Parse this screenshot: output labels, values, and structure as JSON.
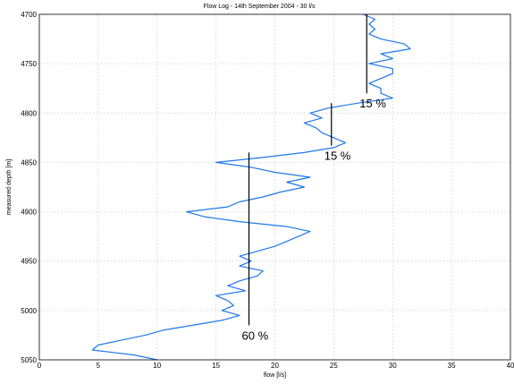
{
  "chart_data": {
    "type": "line",
    "title": "Flow Log - 14th September 2004 - 30 l/s",
    "xlabel": "flow [l/s]",
    "ylabel": "measured depth [m]",
    "xlim": [
      0,
      40
    ],
    "ylim": [
      4700,
      5050
    ],
    "y_inverted": true,
    "grid": true,
    "x_ticks": [
      "0",
      "5",
      "10",
      "15",
      "20",
      "25",
      "30",
      "35",
      "40"
    ],
    "y_ticks": [
      "4700",
      "4750",
      "4800",
      "4850",
      "4900",
      "4950",
      "5000",
      "5050"
    ],
    "series": [
      {
        "color": "#1f77e8",
        "depth": [
          4700,
          4705,
          4710,
          4715,
          4720,
          4725,
          4730,
          4735,
          4740,
          4745,
          4750,
          4755,
          4760,
          4765,
          4770,
          4775,
          4780,
          4785,
          4790,
          4795,
          4800,
          4805,
          4810,
          4815,
          4820,
          4825,
          4830,
          4835,
          4840,
          4845,
          4850,
          4855,
          4860,
          4865,
          4870,
          4875,
          4880,
          4885,
          4890,
          4895,
          4900,
          4905,
          4910,
          4915,
          4920,
          4925,
          4930,
          4935,
          4940,
          4945,
          4950,
          4955,
          4960,
          4965,
          4970,
          4975,
          4980,
          4985,
          4990,
          4995,
          5000,
          5005,
          5010,
          5015,
          5020,
          5025,
          5030,
          5035,
          5040,
          5045,
          5050
        ],
        "flow": [
          27.5,
          28.5,
          28,
          28.5,
          28,
          29,
          31,
          31.5,
          29,
          30,
          28,
          30,
          30,
          29,
          28,
          29,
          29,
          30,
          27,
          24.5,
          23,
          24,
          22.5,
          23.5,
          24,
          25,
          26,
          25,
          22.5,
          19,
          15,
          18,
          20,
          23,
          21,
          22.5,
          20.5,
          19,
          17,
          16,
          12.5,
          14,
          17,
          21,
          23,
          22,
          21,
          20,
          18.5,
          17,
          18,
          17,
          19,
          18.5,
          17,
          16,
          17.5,
          15,
          16,
          16.5,
          15.5,
          17,
          15.5,
          13,
          10.5,
          9,
          7,
          5,
          4.5,
          8,
          10
        ]
      }
    ],
    "segments": [
      {
        "flow": 27.8,
        "depth_from": 4700,
        "depth_to": 4780,
        "label": "15 %"
      },
      {
        "flow": 24.8,
        "depth_from": 4790,
        "depth_to": 4833,
        "label": "15 %"
      },
      {
        "flow": 17.8,
        "depth_from": 4840,
        "depth_to": 5015,
        "label": "60 %"
      }
    ]
  }
}
